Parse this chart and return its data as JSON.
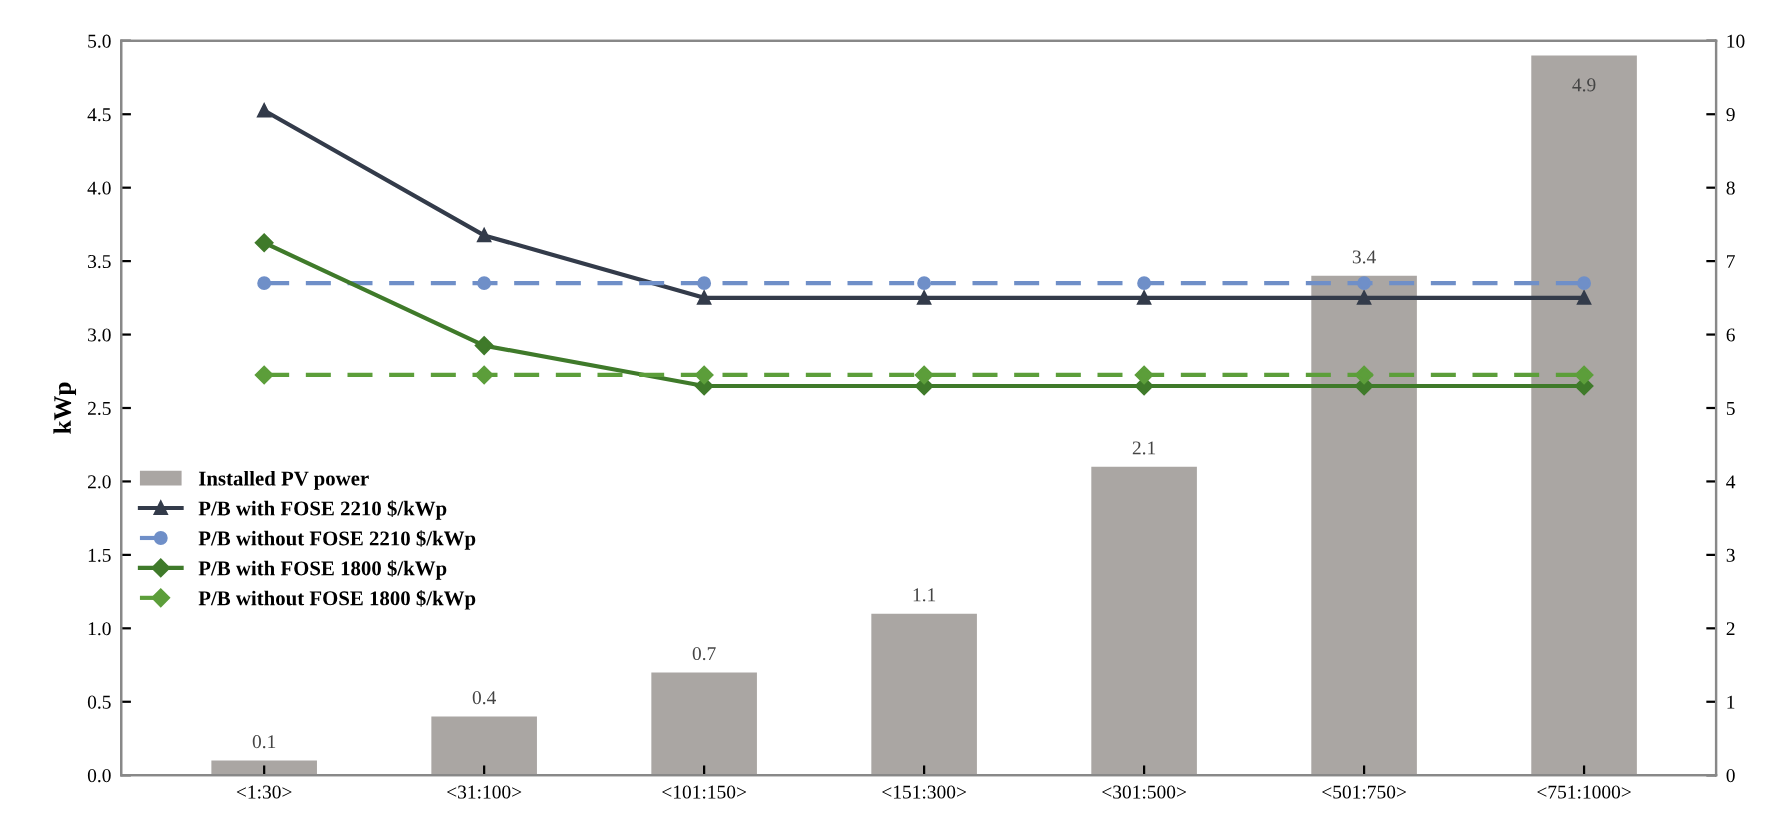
{
  "chart_data": {
    "type": "bar",
    "ylabel": "kWp",
    "categories": [
      "<1:30>",
      "<31:100>",
      "<101:150>",
      "<151:300>",
      "<301:500>",
      "<501:750>",
      "<751:1000>"
    ],
    "series": [
      {
        "name": "Installed PV power",
        "color": "#aaa6a3",
        "values": [
          0.1,
          0.4,
          0.7,
          1.1,
          2.1,
          3.4,
          4.9
        ],
        "value_labels": [
          "0.1",
          "0.4",
          "0.7",
          "1.1",
          "2.1",
          "3.4",
          "4.9"
        ]
      },
      {
        "name": "P/B with FOSE 2210 $/kWp",
        "type": "line",
        "axis": "y2",
        "color": "#333b4a",
        "marker": "triangle",
        "line_style": "solid",
        "values": [
          9.05,
          7.35,
          6.5,
          6.5,
          6.5,
          6.5,
          6.5
        ]
      },
      {
        "name": "P/B without FOSE 2210 $/kWp",
        "type": "line",
        "axis": "y2",
        "color": "#6f8fc8",
        "marker": "circle",
        "line_style": "dashed",
        "values": [
          6.7,
          6.7,
          6.7,
          6.7,
          6.7,
          6.7,
          6.7
        ]
      },
      {
        "name": "P/B with FOSE 1800 $/kWp",
        "type": "line",
        "axis": "y2",
        "color": "#3f7a2a",
        "marker": "diamond",
        "line_style": "solid",
        "values": [
          7.25,
          5.85,
          5.3,
          5.3,
          5.3,
          5.3,
          5.3
        ]
      },
      {
        "name": "P/B without FOSE 1800 $/kWp",
        "type": "line",
        "axis": "y2",
        "color": "#5c9e3a",
        "marker": "diamond",
        "line_style": "dashed",
        "values": [
          5.45,
          5.45,
          5.45,
          5.45,
          5.45,
          5.45,
          5.45
        ]
      }
    ],
    "ylim": [
      0,
      5
    ],
    "yticks": [
      {
        "value": 0,
        "label": "0.0"
      },
      {
        "value": 0.5,
        "label": "0.5"
      },
      {
        "value": 1,
        "label": "1.0"
      },
      {
        "value": 1.5,
        "label": "1.5"
      },
      {
        "value": 2,
        "label": "2.0"
      },
      {
        "value": 2.5,
        "label": "2.5"
      },
      {
        "value": 3,
        "label": "3.0"
      },
      {
        "value": 3.5,
        "label": "3.5"
      },
      {
        "value": 4,
        "label": "4.0"
      },
      {
        "value": 4.5,
        "label": "4.5"
      },
      {
        "value": 5,
        "label": "5.0"
      }
    ],
    "y2lim": [
      0,
      10
    ],
    "y2ticks": [
      0,
      1,
      2,
      3,
      4,
      5,
      6,
      7,
      8,
      9,
      10
    ],
    "legend": "center left",
    "grid": false
  }
}
